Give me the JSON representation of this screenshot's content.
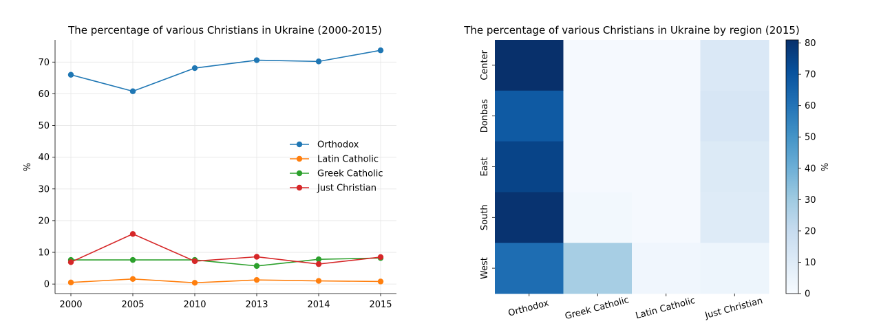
{
  "chart_data": [
    {
      "type": "line",
      "title": "The percentage of various Christians in Ukraine (2000-2015)",
      "xlabel": "",
      "ylabel": "%",
      "categories": [
        "2000",
        "2005",
        "2010",
        "2013",
        "2014",
        "2015"
      ],
      "ylim": [
        -3,
        77
      ],
      "yticks": [
        0,
        10,
        20,
        30,
        40,
        50,
        60,
        70
      ],
      "grid": true,
      "legend_position": "center-right",
      "series": [
        {
          "name": "Orthodox",
          "color": "#1f77b4",
          "values": [
            66.0,
            60.8,
            68.1,
            70.6,
            70.2,
            73.7
          ]
        },
        {
          "name": "Latin Catholic",
          "color": "#ff7f0e",
          "values": [
            0.5,
            1.6,
            0.4,
            1.3,
            1.0,
            0.8
          ]
        },
        {
          "name": "Greek Catholic",
          "color": "#2ca02c",
          "values": [
            7.6,
            7.6,
            7.6,
            5.7,
            7.8,
            8.2
          ]
        },
        {
          "name": "Just Christian",
          "color": "#d62728",
          "values": [
            6.9,
            15.8,
            7.2,
            8.6,
            6.3,
            8.5
          ]
        }
      ]
    },
    {
      "type": "heatmap",
      "title": "The percentage of various Christians in Ukraine by region (2015)",
      "xlabel": "",
      "ylabel": "",
      "columns": [
        "Orthodox",
        "Greek Catholic",
        "Latin Catholic",
        "Just Christian"
      ],
      "rows": [
        "Center",
        "Donbas",
        "East",
        "South",
        "West"
      ],
      "values": [
        [
          81,
          1,
          1,
          12
        ],
        [
          68,
          1,
          1,
          13
        ],
        [
          75,
          1,
          1,
          11
        ],
        [
          80,
          2,
          1,
          10
        ],
        [
          62,
          28,
          3,
          4
        ]
      ],
      "colormap": "Blues",
      "colorbar": {
        "label": "%",
        "min": 0,
        "max": 81,
        "ticks": [
          0,
          10,
          20,
          30,
          40,
          50,
          60,
          70,
          80
        ]
      }
    }
  ]
}
